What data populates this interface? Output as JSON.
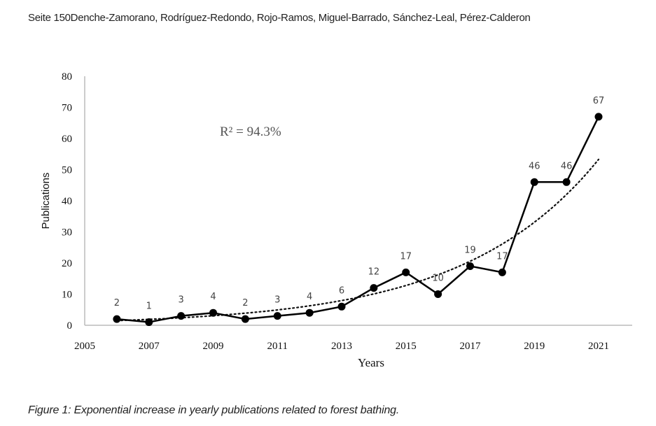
{
  "header": "Seite 150Denche-Zamorano, Rodríguez-Redondo, Rojo-Ramos, Miguel-Barrado, Sánchez-Leal, Pérez-Calderon",
  "caption": "Figure 1: Exponential increase in yearly publications related to forest bathing.",
  "chart_data": {
    "type": "line",
    "title": "",
    "xlabel": "Years",
    "ylabel": "Publications",
    "xlim": [
      2005,
      2021
    ],
    "ylim": [
      0,
      80
    ],
    "xticks": [
      2005,
      2007,
      2009,
      2011,
      2013,
      2015,
      2017,
      2019,
      2021
    ],
    "yticks": [
      0,
      10,
      20,
      30,
      40,
      50,
      60,
      70,
      80
    ],
    "grid": false,
    "x": [
      2006,
      2007,
      2008,
      2009,
      2010,
      2011,
      2012,
      2013,
      2014,
      2015,
      2016,
      2017,
      2018,
      2019,
      2020,
      2021
    ],
    "series": [
      {
        "name": "Publications",
        "values": [
          2,
          1,
          3,
          4,
          2,
          3,
          4,
          6,
          12,
          17,
          10,
          19,
          17,
          46,
          46,
          67
        ],
        "color": "#000000"
      }
    ],
    "trendline": {
      "type": "exponential",
      "base_year": 2006,
      "a": 1.5,
      "b": 0.238,
      "style": "dotted"
    },
    "annotation": "R² = 94.3%"
  }
}
